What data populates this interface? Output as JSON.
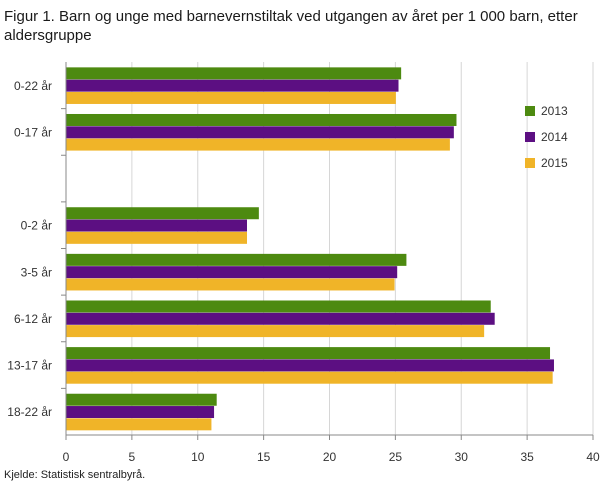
{
  "title": "Figur 1. Barn og unge med barnevernstiltak ved utgangen av året per 1 000 barn, etter aldersgruppe",
  "source": "Kjelde: Statistisk sentralbyrå.",
  "colors": {
    "2013": "#4d8a10",
    "2014": "#5c0f82",
    "2015": "#f0b428",
    "grid": "#d6d6d6",
    "axis": "#888888"
  },
  "chart_data": {
    "type": "bar",
    "orientation": "horizontal",
    "categories": [
      "0-22 år",
      "0-17 år",
      "",
      "0-2 år",
      "3-5 år",
      "6-12 år",
      "13-17 år",
      "18-22 år"
    ],
    "series": [
      {
        "name": "2013",
        "values": [
          25.4,
          29.6,
          null,
          14.6,
          25.8,
          32.2,
          36.7,
          11.4
        ]
      },
      {
        "name": "2014",
        "values": [
          25.2,
          29.4,
          null,
          13.7,
          25.1,
          32.5,
          37.0,
          11.2
        ]
      },
      {
        "name": "2015",
        "values": [
          25.0,
          29.1,
          null,
          13.7,
          24.9,
          31.7,
          36.9,
          11.0
        ]
      }
    ],
    "xlim": [
      0,
      40
    ],
    "xticks": [
      0,
      5,
      10,
      15,
      20,
      25,
      30,
      35,
      40
    ],
    "grid": true,
    "legend_position": "right"
  }
}
